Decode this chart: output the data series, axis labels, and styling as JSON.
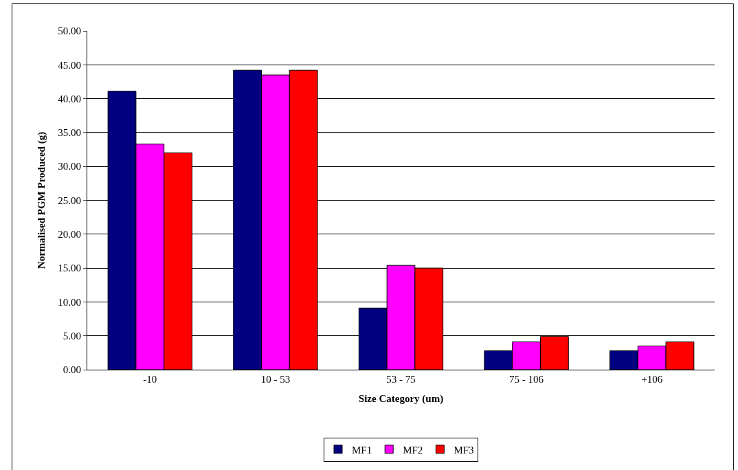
{
  "chart_data": {
    "type": "bar",
    "xlabel": "Size Category (um)",
    "ylabel": "Normalised PGM Produced (g)",
    "categories": [
      "-10",
      "10 - 53",
      "53 - 75",
      "75 - 106",
      "+106"
    ],
    "series": [
      {
        "name": "MF1",
        "color": "#000080",
        "values": [
          41.1,
          44.2,
          9.1,
          2.8,
          2.8
        ]
      },
      {
        "name": "MF2",
        "color": "#ff00ff",
        "values": [
          33.3,
          43.5,
          15.4,
          4.1,
          3.5
        ]
      },
      {
        "name": "MF3",
        "color": "#ff0000",
        "values": [
          32.0,
          44.2,
          15.0,
          4.9,
          4.1
        ]
      }
    ],
    "ylim": [
      0,
      50
    ],
    "yticks": [
      {
        "value": 0,
        "label": "0.00"
      },
      {
        "value": 5,
        "label": "5.00"
      },
      {
        "value": 10,
        "label": "10.00"
      },
      {
        "value": 15,
        "label": "15.00"
      },
      {
        "value": 20,
        "label": "20.00"
      },
      {
        "value": 25,
        "label": "25.00"
      },
      {
        "value": 30,
        "label": "30.00"
      },
      {
        "value": 35,
        "label": "35.00"
      },
      {
        "value": 40,
        "label": "40.00"
      },
      {
        "value": 45,
        "label": "45.00"
      },
      {
        "value": 50,
        "label": "50.00"
      }
    ],
    "grid": "y",
    "legend": "bottom"
  }
}
